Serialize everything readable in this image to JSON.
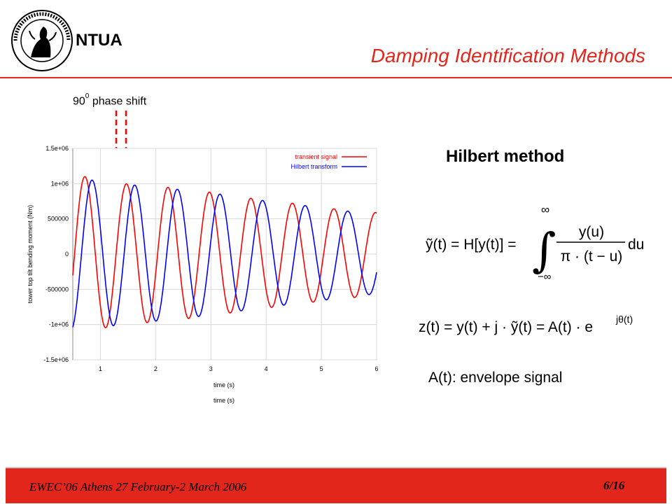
{
  "header": {
    "org": "NTUA",
    "title": "Damping Identification Methods"
  },
  "annotation": {
    "phase_shift_base": "90",
    "phase_shift_sup": "0",
    "phase_shift_text": "phase shift"
  },
  "chart_data": {
    "type": "line",
    "xlabel": "time (s)",
    "xlabel_repeat": "time (s)",
    "ylabel": "tower top tilt bending moment (Nm)",
    "xlim": [
      0.5,
      6
    ],
    "ylim": [
      -1500000,
      1500000
    ],
    "x_ticks": [
      "1",
      "2",
      "3",
      "4",
      "5",
      "6"
    ],
    "y_ticks": [
      "1.5e+06",
      "1e+06",
      "500000",
      "0",
      "-500000",
      "-1e+06",
      "-1.5e+06"
    ],
    "legend_position": "top-right",
    "series": [
      {
        "name": "transient signal",
        "color": "#ff0000",
        "peak_times": [
          0.72,
          1.42,
          2.2,
          2.98,
          3.75,
          4.5,
          5.25,
          5.98
        ],
        "peak_values": [
          1100000,
          1000000,
          950000,
          880000,
          790000,
          720000,
          640000,
          590000
        ]
      },
      {
        "name": "Hilbert transform",
        "color": "#0000ff",
        "peak_times": [
          0.85,
          1.62,
          2.4,
          3.18,
          3.95,
          4.7,
          5.48
        ],
        "peak_values": [
          1050000,
          980000,
          920000,
          850000,
          760000,
          690000,
          610000
        ]
      }
    ]
  },
  "method": {
    "title": "Hilbert method",
    "envelope_text": "A(t): envelope signal"
  },
  "equations": {
    "eq1_lhs": "ỹ(t) = H[y(t)] =",
    "eq1_upper": "∞",
    "eq1_lower": "−∞",
    "eq1_num": "y(u)",
    "eq1_den": "π · (t − u)",
    "eq1_tail": "du",
    "eq2": "z(t) = y(t) + j · ỹ(t) = A(t) · e",
    "eq2_exp": "jθ(t)"
  },
  "footer": {
    "text": "EWEC’06 Athens 27 February-2 March 2006",
    "page": "6/16"
  },
  "colors": {
    "accent": "#e3261b",
    "red_series": "#ff0000",
    "blue_series": "#0000ff"
  }
}
